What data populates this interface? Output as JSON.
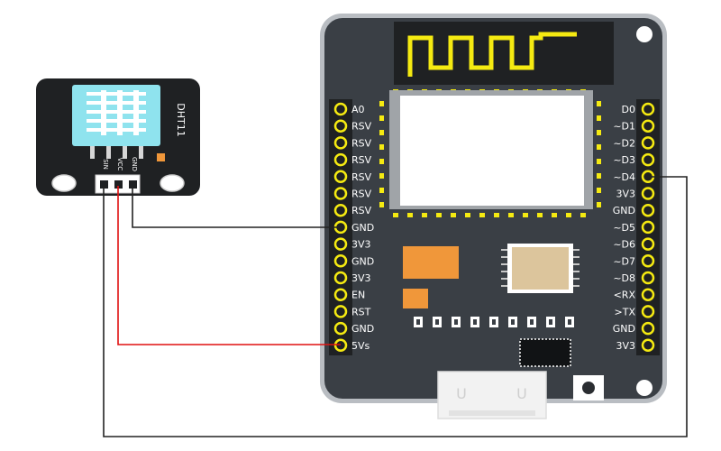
{
  "sensor": {
    "name": "DHT11",
    "pins": [
      "SIN",
      "VCC",
      "GND"
    ]
  },
  "board": {
    "left_pins": [
      "A0",
      "RSV",
      "RSV",
      "RSV",
      "RSV",
      "RSV",
      "RSV",
      "GND",
      "3V3",
      "GND",
      "3V3",
      "EN",
      "RST",
      "GND",
      "5Vs"
    ],
    "right_pins": [
      "D0",
      "~D1",
      "~D2",
      "~D3",
      "~D4",
      "3V3",
      "GND",
      "~D5",
      "~D6",
      "~D7",
      "~D8",
      "<RX",
      ">TX",
      "GND",
      "3V3"
    ],
    "usb_marks": [
      "U",
      "U"
    ]
  },
  "colors": {
    "board": "#3a3f45",
    "board_edge": "#b9bdc2",
    "antenna": "#f5ea11",
    "pad": "#f5ea11",
    "sensor_body": "#8fe3ee",
    "orange_chip": "#f0973a",
    "tan_chip": "#dcc59c",
    "wire_red": "#e01010",
    "wire_black": "#222222"
  }
}
